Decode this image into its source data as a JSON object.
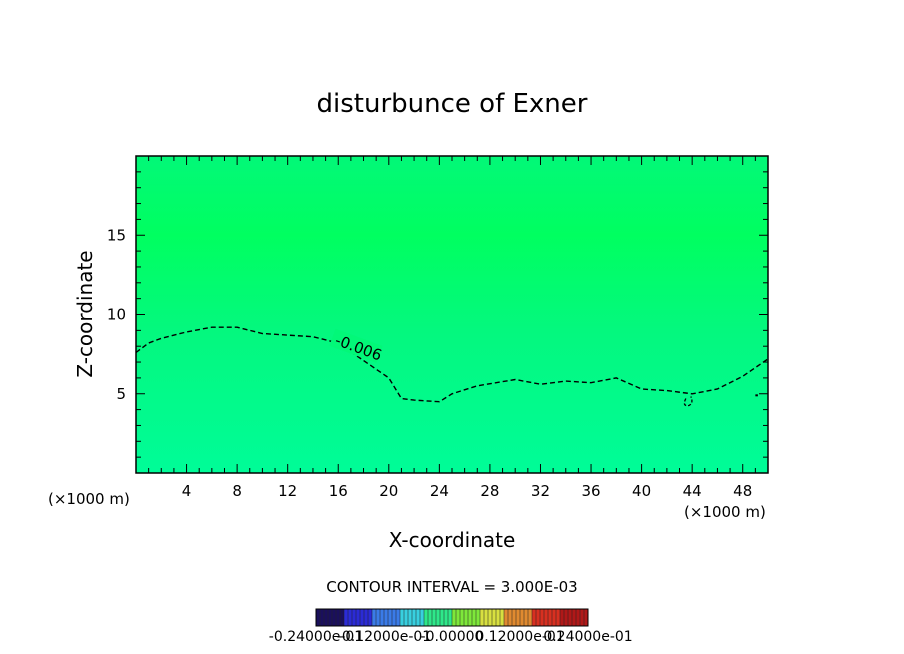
{
  "chart_data": {
    "type": "contour",
    "title": "disturbunce of Exner",
    "xlabel": "X-coordinate",
    "ylabel": "Z-coordinate",
    "x_unit_left": "(×1000 m)",
    "x_unit_right": "(×1000 m)",
    "xlim": [
      0,
      50
    ],
    "ylim": [
      0,
      20
    ],
    "xticks": [
      4,
      8,
      12,
      16,
      20,
      24,
      28,
      32,
      36,
      40,
      44,
      48
    ],
    "yticks": [
      5,
      10,
      15
    ],
    "contour_interval_label": "CONTOUR INTERVAL = 3.000E-03",
    "contours": [
      {
        "level": -0.006,
        "label": "-0.006",
        "dashed": true,
        "points": [
          [
            0,
            7.6
          ],
          [
            1,
            8.2
          ],
          [
            2,
            8.5
          ],
          [
            4,
            8.9
          ],
          [
            6,
            9.2
          ],
          [
            8,
            9.2
          ],
          [
            10,
            8.8
          ],
          [
            12,
            8.7
          ],
          [
            14,
            8.6
          ],
          [
            16,
            8.2
          ],
          [
            18,
            7.1
          ],
          [
            20,
            6.0
          ],
          [
            21,
            4.7
          ],
          [
            22,
            4.6
          ],
          [
            24,
            4.5
          ],
          [
            25,
            5.0
          ],
          [
            27,
            5.5
          ],
          [
            30,
            5.9
          ],
          [
            32,
            5.6
          ],
          [
            34,
            5.8
          ],
          [
            36,
            5.7
          ],
          [
            38,
            6.0
          ],
          [
            40,
            5.3
          ],
          [
            42,
            5.2
          ],
          [
            44,
            5.0
          ],
          [
            46,
            5.3
          ],
          [
            48,
            6.1
          ],
          [
            50,
            7.2
          ]
        ]
      }
    ],
    "colorbar": {
      "labels": [
        "-0.24000e-01",
        "-0.12000e-01",
        "-0.00000",
        "0.12000e-01",
        "0.24000e-01"
      ],
      "colors": [
        "#1a0f5c",
        "#2b2bd6",
        "#3a7be8",
        "#38d0e0",
        "#2ee88a",
        "#7ee83a",
        "#d8e040",
        "#e08a30",
        "#d83020",
        "#b01818"
      ]
    },
    "field_colors": {
      "top": "#00ff66",
      "mid": "#00f87a",
      "bottom": "#00fa96"
    }
  }
}
